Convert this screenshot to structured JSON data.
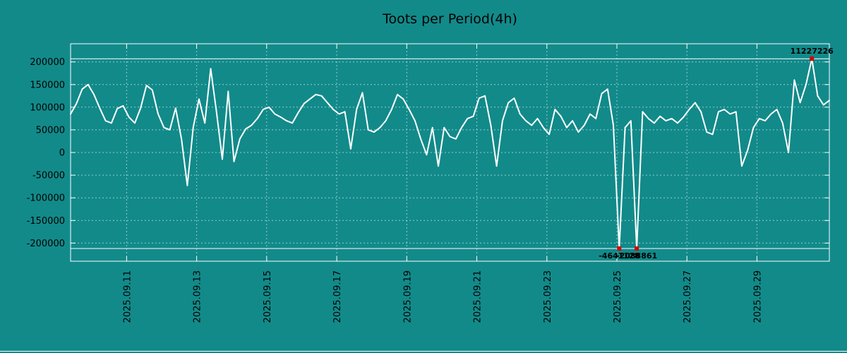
{
  "colors": {
    "background": "#128a8a",
    "line": "#ffffff",
    "grid": "#ffffff",
    "marker": "#d40000",
    "text": "#000000"
  },
  "chart_data": {
    "type": "line",
    "title": "Toots per Period(4h)",
    "xlabel": "",
    "ylabel": "",
    "legend": false,
    "grid": true,
    "x_start_day": 9.4,
    "x_end_day": 31.067,
    "points_per_day": 6,
    "ylim": [
      -240000,
      240000
    ],
    "yticks": [
      -200000,
      -150000,
      -100000,
      -50000,
      0,
      50000,
      100000,
      150000,
      200000
    ],
    "xticks": [
      {
        "day": 11,
        "label": "2025.09.11"
      },
      {
        "day": 13,
        "label": "2025.09.13"
      },
      {
        "day": 15,
        "label": "2025.09.15"
      },
      {
        "day": 17,
        "label": "2025.09.17"
      },
      {
        "day": 19,
        "label": "2025.09.19"
      },
      {
        "day": 21,
        "label": "2025.09.21"
      },
      {
        "day": 23,
        "label": "2025.09.23"
      },
      {
        "day": 25,
        "label": "2025.09.25"
      },
      {
        "day": 27,
        "label": "2025.09.27"
      },
      {
        "day": 29,
        "label": "2025.09.29"
      }
    ],
    "clip_max": 207000,
    "clip_min": -212000,
    "values": [
      85000,
      108000,
      140000,
      150000,
      128000,
      98000,
      70000,
      65000,
      97000,
      103000,
      78000,
      65000,
      98000,
      148000,
      138000,
      85000,
      55000,
      50000,
      98000,
      30000,
      -73000,
      55000,
      118000,
      65000,
      185000,
      90000,
      -15000,
      135000,
      -20000,
      30000,
      52000,
      60000,
      75000,
      95000,
      100000,
      85000,
      78000,
      70000,
      65000,
      88000,
      108000,
      118000,
      128000,
      125000,
      110000,
      95000,
      85000,
      90000,
      8000,
      95000,
      132000,
      50000,
      45000,
      55000,
      70000,
      95000,
      128000,
      118000,
      95000,
      70000,
      30000,
      -5000,
      55000,
      -30000,
      55000,
      35000,
      30000,
      55000,
      75000,
      80000,
      120000,
      125000,
      60000,
      -30000,
      70000,
      110000,
      120000,
      85000,
      70000,
      60000,
      75000,
      55000,
      40000,
      95000,
      80000,
      55000,
      70000,
      45000,
      60000,
      85000,
      75000,
      130000,
      140000,
      60000,
      -4641128,
      55000,
      70000,
      -2088861,
      90000,
      75000,
      65000,
      80000,
      70000,
      75000,
      65000,
      78000,
      95000,
      110000,
      90000,
      45000,
      40000,
      90000,
      95000,
      85000,
      90000,
      -30000,
      5000,
      55000,
      75000,
      70000,
      85000,
      95000,
      65000,
      0,
      160000,
      110000,
      150000,
      11227226,
      125000,
      105000,
      115000
    ],
    "outliers": [
      {
        "index": 94,
        "value": -4641128,
        "label": "-4641128",
        "label_pos": "below"
      },
      {
        "index": 97,
        "value": -2088861,
        "label": "-2088861",
        "label_pos": "below"
      },
      {
        "index": 127,
        "value": 11227226,
        "label": "11227226",
        "label_pos": "above"
      }
    ]
  }
}
